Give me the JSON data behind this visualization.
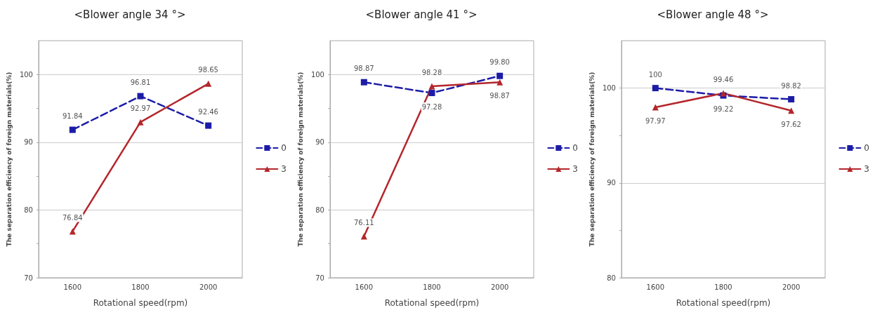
{
  "chart_data": [
    {
      "type": "line",
      "title": "<Blower angle 34 °>",
      "xlabel": "Rotational speed(rpm)",
      "ylabel": "The separation efficiency of foreign materials(%)",
      "categories": [
        "1600",
        "1800",
        "2000"
      ],
      "ylim": [
        70,
        105
      ],
      "yticks": [
        70,
        {
          "value": 75,
          "label": null
        },
        80,
        {
          "value": 85,
          "label": null
        },
        90,
        {
          "value": 95,
          "label": null
        },
        100
      ],
      "grid": "y",
      "legend": "right",
      "series": [
        {
          "name": "0",
          "color": "#1c1ca8",
          "values": [
            91.84,
            96.81,
            92.46
          ],
          "value_labels": [
            "91.84",
            "96.81",
            "92.46"
          ],
          "marker": "square",
          "line_style": "dashed"
        },
        {
          "name": "3",
          "color": "#b3262b",
          "values": [
            76.84,
            92.97,
            98.65
          ],
          "value_labels": [
            "76.84",
            "92.97",
            "98.65"
          ],
          "marker": "triangle",
          "line_style": "solid"
        }
      ]
    },
    {
      "type": "line",
      "title": "<Blower angle 41 °>",
      "xlabel": "Rotational speed(rpm)",
      "ylabel": "The separation efficiency of foreign materials(%)",
      "categories": [
        "1600",
        "1800",
        "2000"
      ],
      "ylim": [
        70,
        105
      ],
      "yticks": [
        70,
        {
          "value": 75,
          "label": null
        },
        80,
        {
          "value": 85,
          "label": null
        },
        90,
        {
          "value": 95,
          "label": null
        },
        100
      ],
      "grid": "y",
      "legend": "right",
      "series": [
        {
          "name": "0",
          "color": "#1c1ca8",
          "values": [
            98.87,
            97.28,
            99.8
          ],
          "value_labels": [
            "98.87",
            "97.28",
            "99.80"
          ],
          "marker": "square",
          "line_style": "dashed"
        },
        {
          "name": "3",
          "color": "#b3262b",
          "values": [
            76.11,
            98.28,
            98.87
          ],
          "value_labels": [
            "76.11",
            "98.28",
            "98.87"
          ],
          "marker": "triangle",
          "line_style": "solid"
        }
      ]
    },
    {
      "type": "line",
      "title": "<Blower angle 48 °>",
      "xlabel": "Rotational speed(rpm)",
      "ylabel": "The separation efficiency of foreign materials(%)",
      "categories": [
        "1600",
        "1800",
        "2000"
      ],
      "ylim": [
        80,
        105
      ],
      "yticks": [
        80,
        {
          "value": 85,
          "label": null
        },
        90,
        {
          "value": 95,
          "label": null
        },
        100
      ],
      "grid": "y",
      "legend": "right",
      "series": [
        {
          "name": "0",
          "color": "#1c1ca8",
          "values": [
            100,
            99.22,
            98.82
          ],
          "value_labels": [
            "100",
            "99.22",
            "98.82"
          ],
          "marker": "square",
          "line_style": "dashed"
        },
        {
          "name": "3",
          "color": "#b3262b",
          "values": [
            97.97,
            99.46,
            97.62
          ],
          "value_labels": [
            "97.97",
            "99.46",
            "97.62"
          ],
          "marker": "triangle",
          "line_style": "solid"
        }
      ]
    }
  ]
}
